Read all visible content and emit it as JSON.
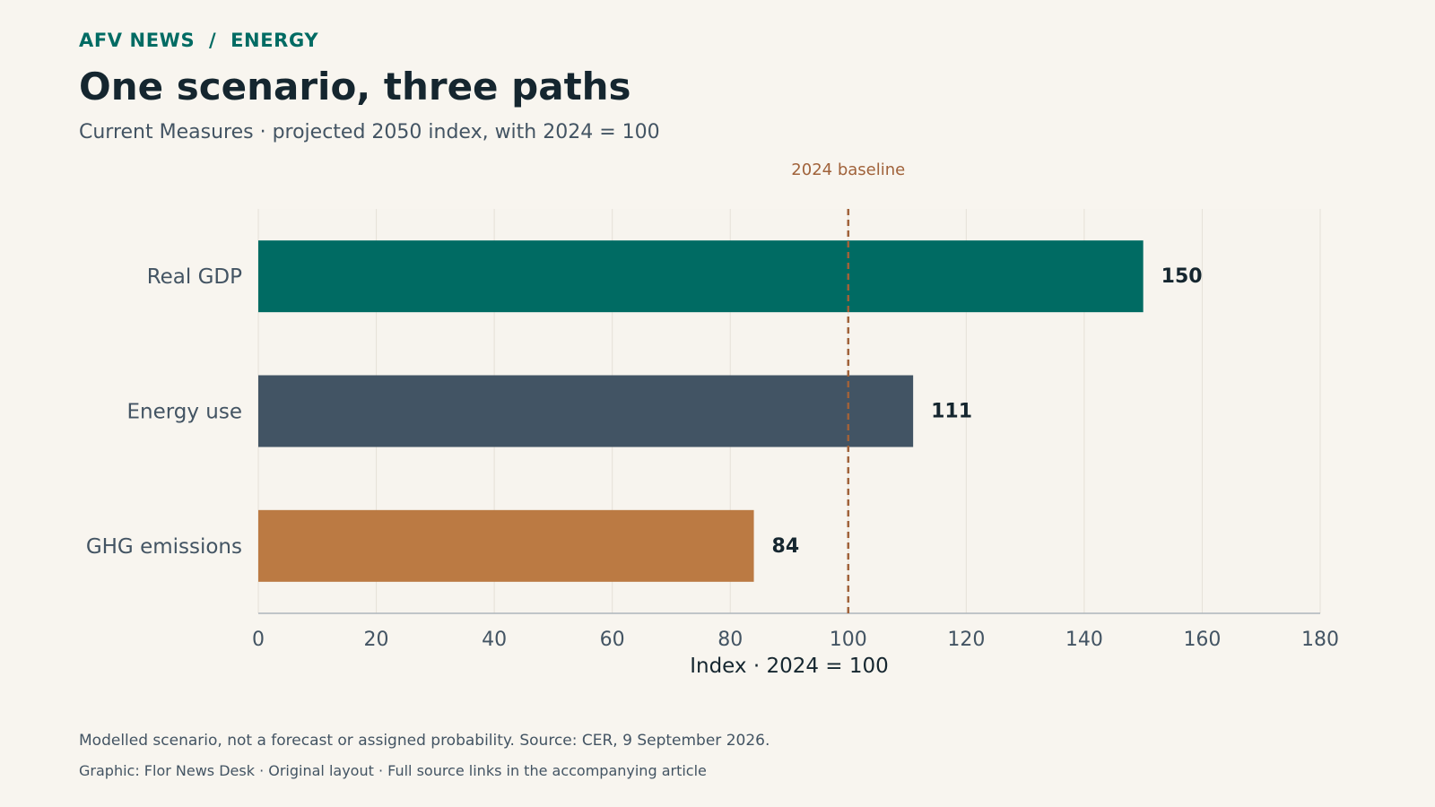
{
  "header": {
    "kicker_publication": "AFV NEWS",
    "kicker_separator": "/",
    "kicker_section": "ENERGY",
    "title": "One scenario, three paths",
    "subtitle": "Current Measures · projected 2050 index, with 2024 = 100"
  },
  "chart_data": {
    "type": "bar",
    "orientation": "horizontal",
    "categories": [
      "Real GDP",
      "Energy use",
      "GHG emissions"
    ],
    "values": [
      150,
      111,
      84
    ],
    "value_labels": [
      "150",
      "111",
      "84"
    ],
    "colors": [
      "#006b63",
      "#425464",
      "#bb7a43"
    ],
    "xlabel": "Index · 2024 = 100",
    "ylabel": "",
    "xlim": [
      0,
      180
    ],
    "xticks": [
      0,
      20,
      40,
      60,
      80,
      100,
      120,
      140,
      160,
      180
    ],
    "grid": true,
    "reference_line": {
      "value": 100,
      "label": "2024 baseline",
      "color": "#a0623a",
      "style": "dashed"
    }
  },
  "footer": {
    "note": "Modelled scenario, not a forecast or assigned probability. Source: CER, 9 September 2026.",
    "credit": "Graphic: Flor News Desk · Original layout · Full source links in the accompanying article"
  }
}
